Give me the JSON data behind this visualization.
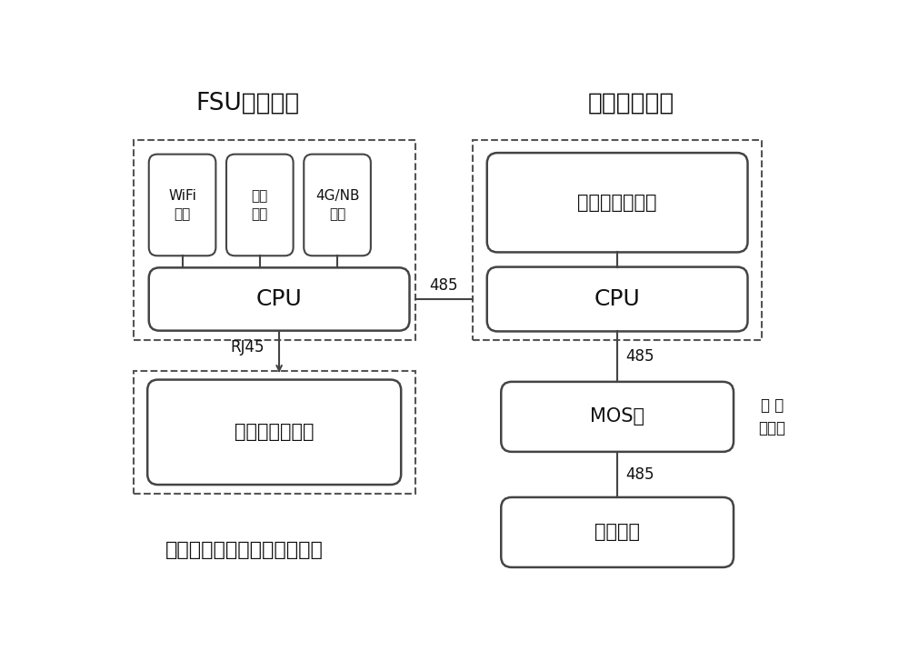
{
  "title_left": "FSU动环模块",
  "title_right": "本地监控模块",
  "bottom_text": "一种新型完善的电源监控方案",
  "modules_left_top": [
    "WiFi\n模块",
    "蓝牙\n模块",
    "4G/NB\n模块"
  ],
  "cpu_left": "CPU",
  "cloud": "监控中心云平台",
  "lcd": "本地监控液晶屏",
  "cpu_right": "CPU",
  "mos": "MOS管",
  "rectifier": "整流模块",
  "label_485_h": "485",
  "label_rj45": "RJ45",
  "label_485_v1": "485",
  "label_485_v2": "485",
  "label_branch": "分 路\n控制板",
  "bg_color": "#ffffff",
  "box_color": "#444444",
  "dashed_color": "#555555",
  "text_color": "#111111",
  "line_color": "#444444"
}
